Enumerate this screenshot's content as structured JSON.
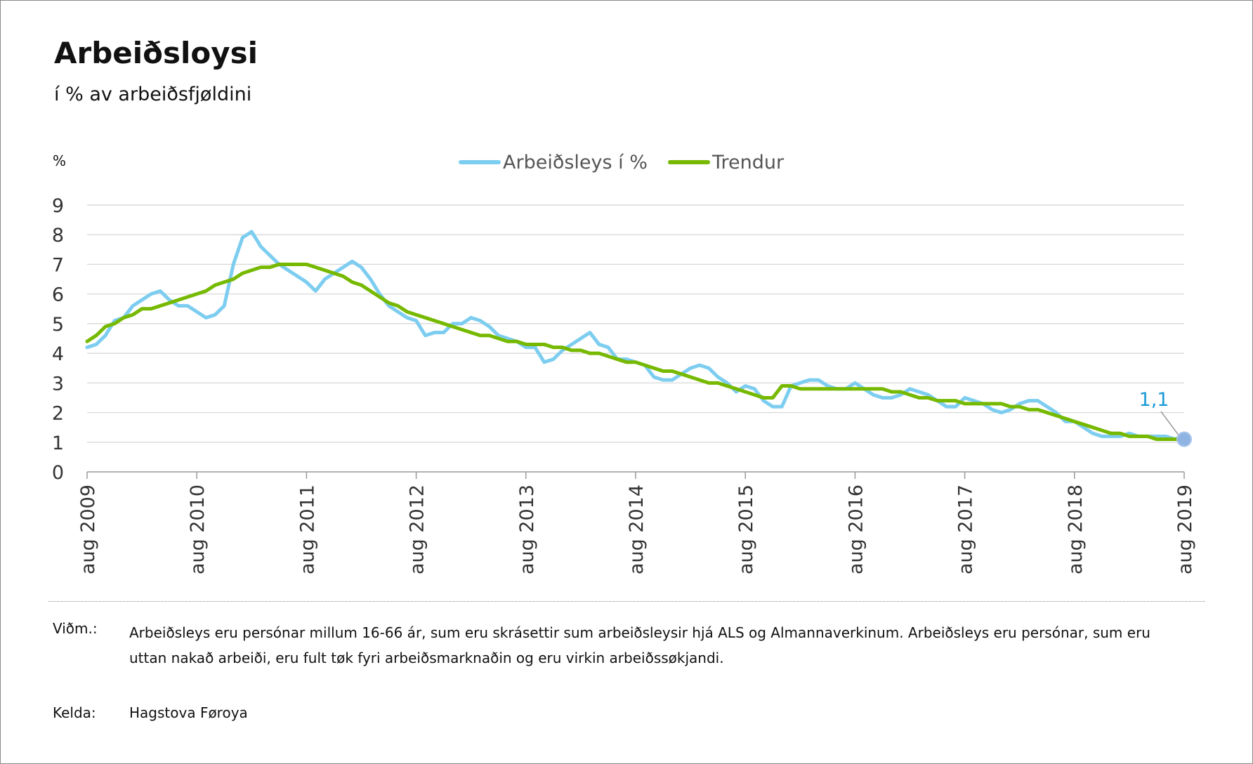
{
  "title": "Arbeiðsloysi",
  "subtitle": "í % av arbeiðsfjøldini",
  "chart_data": {
    "type": "line",
    "ylabel": "%",
    "ylim": [
      0,
      9
    ],
    "yticks": [
      "0",
      "1",
      "2",
      "3",
      "4",
      "5",
      "6",
      "7",
      "8",
      "9"
    ],
    "x_tick_labels": [
      "aug 2009",
      "aug 2010",
      "aug 2011",
      "aug 2012",
      "aug 2013",
      "aug 2014",
      "aug 2015",
      "aug 2016",
      "aug 2017",
      "aug 2018",
      "aug 2019"
    ],
    "x_start": "aug 2009",
    "grid": true,
    "legend_position": "top-center",
    "series": [
      {
        "name": "Arbeiðsleys í %",
        "color": "#7dcdf0",
        "values": [
          4.2,
          4.3,
          4.6,
          5.1,
          5.2,
          5.6,
          5.8,
          6.0,
          6.1,
          5.8,
          5.6,
          5.6,
          5.4,
          5.2,
          5.3,
          5.6,
          7.0,
          7.9,
          8.1,
          7.6,
          7.3,
          7.0,
          6.8,
          6.6,
          6.4,
          6.1,
          6.5,
          6.7,
          6.9,
          7.1,
          6.9,
          6.5,
          6.0,
          5.6,
          5.4,
          5.2,
          5.1,
          4.6,
          4.7,
          4.7,
          5.0,
          5.0,
          5.2,
          5.1,
          4.9,
          4.6,
          4.5,
          4.4,
          4.2,
          4.2,
          3.7,
          3.8,
          4.1,
          4.3,
          4.5,
          4.7,
          4.3,
          4.2,
          3.8,
          3.8,
          3.7,
          3.6,
          3.2,
          3.1,
          3.1,
          3.3,
          3.5,
          3.6,
          3.5,
          3.2,
          3.0,
          2.7,
          2.9,
          2.8,
          2.4,
          2.2,
          2.2,
          2.9,
          3.0,
          3.1,
          3.1,
          2.9,
          2.8,
          2.8,
          3.0,
          2.8,
          2.6,
          2.5,
          2.5,
          2.6,
          2.8,
          2.7,
          2.6,
          2.4,
          2.2,
          2.2,
          2.5,
          2.4,
          2.3,
          2.1,
          2.0,
          2.1,
          2.3,
          2.4,
          2.4,
          2.2,
          2.0,
          1.7,
          1.7,
          1.5,
          1.3,
          1.2,
          1.2,
          1.2,
          1.3,
          1.2,
          1.2,
          1.2,
          1.2,
          1.1,
          1.2
        ]
      },
      {
        "name": "Trendur",
        "color": "#76b900",
        "values": [
          4.4,
          4.6,
          4.9,
          5.0,
          5.2,
          5.3,
          5.5,
          5.5,
          5.6,
          5.7,
          5.8,
          5.9,
          6.0,
          6.1,
          6.3,
          6.4,
          6.5,
          6.7,
          6.8,
          6.9,
          6.9,
          7.0,
          7.0,
          7.0,
          7.0,
          6.9,
          6.8,
          6.7,
          6.6,
          6.4,
          6.3,
          6.1,
          5.9,
          5.7,
          5.6,
          5.4,
          5.3,
          5.2,
          5.1,
          5.0,
          4.9,
          4.8,
          4.7,
          4.6,
          4.6,
          4.5,
          4.4,
          4.4,
          4.3,
          4.3,
          4.3,
          4.2,
          4.2,
          4.1,
          4.1,
          4.0,
          4.0,
          3.9,
          3.8,
          3.7,
          3.7,
          3.6,
          3.5,
          3.4,
          3.4,
          3.3,
          3.2,
          3.1,
          3.0,
          3.0,
          2.9,
          2.8,
          2.7,
          2.6,
          2.5,
          2.5,
          2.9,
          2.9,
          2.8,
          2.8,
          2.8,
          2.8,
          2.8,
          2.8,
          2.8,
          2.8,
          2.8,
          2.8,
          2.7,
          2.7,
          2.6,
          2.5,
          2.5,
          2.4,
          2.4,
          2.4,
          2.3,
          2.3,
          2.3,
          2.3,
          2.3,
          2.2,
          2.2,
          2.1,
          2.1,
          2.0,
          1.9,
          1.8,
          1.7,
          1.6,
          1.5,
          1.4,
          1.3,
          1.3,
          1.2,
          1.2,
          1.2,
          1.1,
          1.1,
          1.1,
          1.1
        ]
      }
    ],
    "annotation": {
      "label": "1,1",
      "value": 1.1,
      "color": "#1a9ad6"
    }
  },
  "notes": {
    "label": "Viðm.:",
    "text": "Arbeiðsleys eru persónar millum 16-66 ár, sum eru skrásettir sum arbeiðsleysir hjá ALS og Almannaverkinum. Arbeiðsleys eru persónar, sum eru uttan nakað arbeiði, eru fult tøk fyri arbeiðsmarknaðin og eru virkin arbeiðssøkjandi."
  },
  "source": {
    "label": "Kelda:",
    "text": "Hagstova Føroya"
  }
}
